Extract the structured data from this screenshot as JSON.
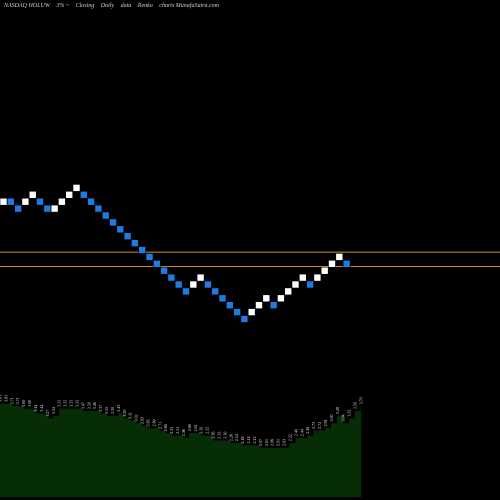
{
  "header": {
    "symbol": "NASDAQ HOLUW",
    "brick": "3% ~",
    "mode": "Closing",
    "period": "Daily",
    "kind": "data",
    "chart_name": "Renko",
    "brand": "charts MunafaSutra.com"
  },
  "colors": {
    "background": "#000000",
    "up_brick": "#ffffff",
    "down_brick": "#1e7be0",
    "brick_border": "#000000",
    "reference_line": "#d98c1a",
    "volume_fill": "#062d06",
    "volume_stroke": "#e0e0e0",
    "label_text": "#e0e0e0"
  },
  "chart_data": {
    "type": "renko",
    "title": "NASDAQ HOLUW 3% ~ Closing Daily data Renko charts MunafaSutra.com",
    "brick_levels": [
      17,
      17,
      16,
      17,
      18,
      17,
      16,
      16,
      17,
      18,
      19,
      18,
      17,
      16,
      15,
      14,
      13,
      12,
      11,
      10,
      9,
      8,
      7,
      6,
      5,
      4,
      5,
      6,
      5,
      4,
      3,
      2,
      1,
      0,
      1,
      2,
      3,
      2,
      3,
      4,
      5,
      6,
      5,
      6,
      7,
      8,
      9,
      8
    ],
    "brick_directions": [
      "up",
      "down",
      "down",
      "up",
      "up",
      "down",
      "down",
      "up",
      "up",
      "up",
      "up",
      "down",
      "down",
      "down",
      "down",
      "down",
      "down",
      "down",
      "down",
      "down",
      "down",
      "down",
      "down",
      "down",
      "down",
      "down",
      "up",
      "up",
      "down",
      "down",
      "down",
      "down",
      "down",
      "down",
      "up",
      "up",
      "up",
      "down",
      "up",
      "up",
      "up",
      "up",
      "down",
      "up",
      "up",
      "up",
      "up",
      "down"
    ],
    "reference_lines": [
      9.7,
      7.6
    ],
    "volume_labels": [
      "3.81",
      "3.81",
      "3.71",
      "3.71",
      "3.60",
      "3.60",
      "3.44",
      "3.44",
      "3.27",
      "3.34",
      "3.55",
      "3.55",
      "3.55",
      "3.55",
      "3.47",
      "3.50",
      "3.46",
      "3.37",
      "3.33",
      "3.30",
      "3.43",
      "3.20",
      "3.11",
      "3.02",
      "2.93",
      "2.85",
      "2.80",
      "2.71",
      "2.66",
      "2.53",
      "2.51",
      "2.46",
      "2.66",
      "2.61",
      "2.50",
      "2.52",
      "2.36",
      "2.33",
      "2.30",
      "2.26",
      "2.24",
      "2.18",
      "2.14",
      "2.12",
      "2.07",
      "2.01",
      "2.06",
      "2.01",
      "2.03",
      "2.22",
      "2.40",
      "2.44",
      "2.49",
      "2.73",
      "2.72",
      "2.81",
      "3.00",
      "3.28",
      "3.04",
      "3.22",
      "3.50",
      "3.70"
    ],
    "volume_values": [
      38,
      38,
      37,
      37,
      36,
      36,
      34,
      34,
      32,
      33,
      36,
      36,
      36,
      36,
      35,
      35,
      35,
      34,
      33,
      33,
      34,
      32,
      31,
      30,
      29,
      28,
      28,
      27,
      26,
      25,
      25,
      24,
      26,
      26,
      25,
      25,
      23,
      23,
      23,
      22,
      22,
      21,
      21,
      21,
      20,
      20,
      20,
      20,
      20,
      22,
      24,
      24,
      25,
      27,
      27,
      28,
      30,
      33,
      30,
      32,
      35,
      37
    ],
    "ylim_volume": [
      0,
      60
    ],
    "grid": false
  }
}
